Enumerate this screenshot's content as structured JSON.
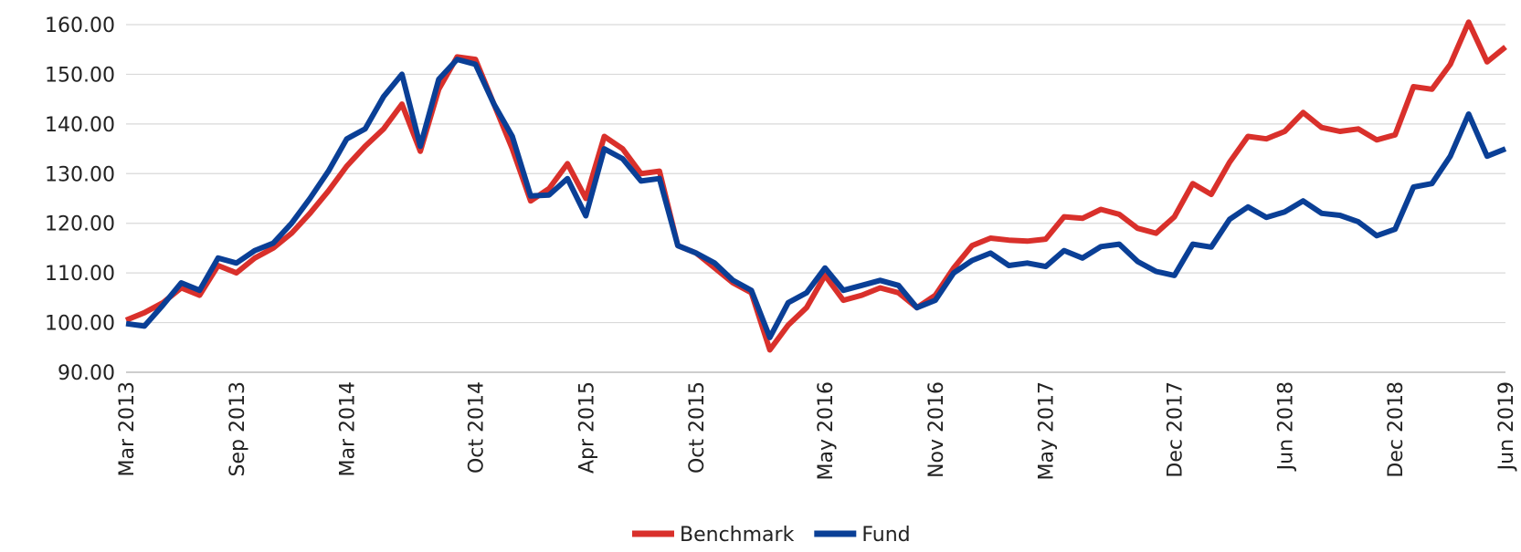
{
  "chart_data": {
    "type": "line",
    "categories": [
      "Mar 2013",
      null,
      null,
      null,
      null,
      null,
      "Sep 2013",
      null,
      null,
      null,
      null,
      null,
      "Mar 2014",
      null,
      null,
      null,
      null,
      null,
      null,
      "Oct 2014",
      null,
      null,
      null,
      null,
      null,
      "Apr 2015",
      null,
      null,
      null,
      null,
      null,
      "Oct 2015",
      null,
      null,
      null,
      null,
      null,
      null,
      "May 2016",
      null,
      null,
      null,
      null,
      null,
      "Nov 2016",
      null,
      null,
      null,
      null,
      null,
      "May 2017",
      null,
      null,
      null,
      null,
      null,
      null,
      "Dec 2017",
      null,
      null,
      null,
      null,
      null,
      "Jun 2018",
      null,
      null,
      null,
      null,
      null,
      "Dec 2018",
      null,
      null,
      null,
      null,
      null,
      "Jun 2019"
    ],
    "series": [
      {
        "name": "Benchmark",
        "color": "#d9302b",
        "values": [
          100.5,
          102,
          104,
          107,
          105.5,
          111.5,
          110,
          113,
          115,
          118,
          122,
          126.5,
          131.5,
          135.5,
          139,
          144,
          134.5,
          147,
          153.5,
          153,
          144,
          135,
          124.5,
          127,
          132,
          125,
          137.5,
          135,
          130,
          130.5,
          115.5,
          114,
          111,
          108,
          106,
          94.5,
          99.5,
          103,
          109.5,
          104.5,
          105.5,
          107,
          106,
          103,
          105.5,
          111,
          115.5,
          117,
          116.6,
          116.4,
          116.8,
          121.3,
          121,
          122.8,
          121.8,
          119,
          118,
          121.3,
          128,
          125.8,
          132.3,
          137.5,
          137,
          138.5,
          142.3,
          139.3,
          138.5,
          139,
          136.8,
          137.8,
          147.5,
          147,
          152,
          160.5,
          152.5,
          155.5
        ]
      },
      {
        "name": "Fund",
        "color": "#0a3f96",
        "values": [
          99.8,
          99.3,
          103.5,
          108,
          106.5,
          113,
          112,
          114.5,
          116,
          120,
          125,
          130.5,
          137,
          139,
          145.5,
          150,
          135.5,
          149,
          153,
          152,
          144,
          137.5,
          125.5,
          125.7,
          129,
          121.5,
          135,
          133,
          128.5,
          129,
          115.5,
          114,
          112,
          108.5,
          106.5,
          97,
          104,
          106,
          111,
          106.5,
          107.5,
          108.5,
          107.5,
          103,
          104.5,
          110,
          112.5,
          114,
          111.5,
          112,
          111.3,
          114.5,
          113,
          115.3,
          115.8,
          112.3,
          110.3,
          109.5,
          115.8,
          115.2,
          120.8,
          123.3,
          121.2,
          122.3,
          124.5,
          122,
          121.6,
          120.3,
          117.5,
          118.8,
          127.3,
          128,
          133.5,
          142,
          133.5,
          135
        ]
      }
    ],
    "ylim": [
      90,
      160
    ],
    "yticks": [
      {
        "value": 90,
        "label": "90.00"
      },
      {
        "value": 100,
        "label": "100.00"
      },
      {
        "value": 110,
        "label": "110.00"
      },
      {
        "value": 120,
        "label": "120.00"
      },
      {
        "value": 130,
        "label": "130.00"
      },
      {
        "value": 140,
        "label": "140.00"
      },
      {
        "value": 150,
        "label": "150.00"
      },
      {
        "value": 160,
        "label": "160.00"
      }
    ],
    "grid": true,
    "legend": "bottom"
  }
}
